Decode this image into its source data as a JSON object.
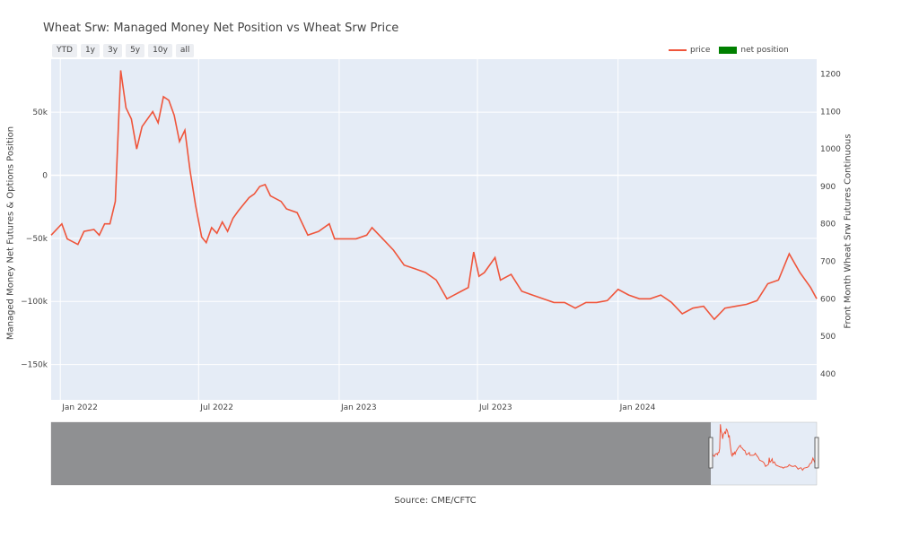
{
  "header": {
    "title": "Wheat Srw: Managed Money Net Position vs Wheat Srw Price"
  },
  "range_selector": [
    {
      "label": "YTD"
    },
    {
      "label": "1y"
    },
    {
      "label": "3y"
    },
    {
      "label": "5y"
    },
    {
      "label": "10y"
    },
    {
      "label": "all"
    }
  ],
  "legend": {
    "price_label": "price",
    "net_label": "net position"
  },
  "source": "Source: CME/CFTC",
  "colors": {
    "price": "#EF553B",
    "net": "#008000",
    "plot_bg": "#E5ECF6",
    "grid": "#ffffff",
    "rangeslider_mask": "#808080"
  },
  "chart_data": {
    "type": "line",
    "title": "Wheat Srw: Managed Money Net Position vs Wheat Srw Price",
    "xlabel": "",
    "ylabel": "Managed Money Net Futures & Options Position",
    "y2label": "Front Month Wheat Srw Futures Continuous",
    "x_ticks": [
      "Jan 2022",
      "Jul 2022",
      "Jan 2023",
      "Jul 2023",
      "Jan 2024"
    ],
    "y_ticks": [
      "50k",
      "0",
      "−50k",
      "−100k",
      "−150k"
    ],
    "y2_ticks": [
      "1200",
      "1100",
      "1000",
      "900",
      "800",
      "700",
      "600",
      "500",
      "400"
    ],
    "ylim": [
      -178000,
      92000
    ],
    "y2lim": [
      330,
      1240
    ],
    "xlim": [
      "2021-12-20",
      "2024-09-17"
    ],
    "y_tick_values": [
      50000,
      0,
      -50000,
      -100000,
      -150000
    ],
    "y2_tick_values": [
      1200,
      1100,
      1000,
      900,
      800,
      700,
      600,
      500,
      400
    ],
    "x_tick_dates": [
      "2022-01-01",
      "2022-07-01",
      "2023-01-01",
      "2023-07-01",
      "2024-01-01"
    ],
    "grid": true,
    "legend_position": "top-right",
    "series": [
      {
        "name": "price",
        "axis": "right",
        "x": [
          "2021-12-20",
          "2022-01-03",
          "2022-01-10",
          "2022-01-24",
          "2022-02-01",
          "2022-02-14",
          "2022-02-21",
          "2022-02-28",
          "2022-03-07",
          "2022-03-14",
          "2022-03-21",
          "2022-03-28",
          "2022-04-04",
          "2022-04-11",
          "2022-04-18",
          "2022-05-02",
          "2022-05-09",
          "2022-05-16",
          "2022-05-23",
          "2022-05-30",
          "2022-06-06",
          "2022-06-13",
          "2022-06-20",
          "2022-06-27",
          "2022-07-05",
          "2022-07-11",
          "2022-07-18",
          "2022-07-25",
          "2022-08-01",
          "2022-08-08",
          "2022-08-15",
          "2022-08-22",
          "2022-09-05",
          "2022-09-12",
          "2022-09-19",
          "2022-09-26",
          "2022-10-03",
          "2022-10-17",
          "2022-10-24",
          "2022-11-07",
          "2022-11-21",
          "2022-12-05",
          "2022-12-19",
          "2022-12-26",
          "2023-01-09",
          "2023-01-23",
          "2023-02-06",
          "2023-02-13",
          "2023-02-27",
          "2023-03-13",
          "2023-03-27",
          "2023-04-10",
          "2023-04-24",
          "2023-05-08",
          "2023-05-22",
          "2023-06-05",
          "2023-06-19",
          "2023-06-26",
          "2023-07-03",
          "2023-07-10",
          "2023-07-24",
          "2023-07-31",
          "2023-08-14",
          "2023-08-28",
          "2023-09-11",
          "2023-09-25",
          "2023-10-09",
          "2023-10-23",
          "2023-11-06",
          "2023-11-20",
          "2023-12-04",
          "2023-12-18",
          "2024-01-01",
          "2024-01-15",
          "2024-01-29",
          "2024-02-12",
          "2024-02-26",
          "2024-03-11",
          "2024-03-25",
          "2024-04-08",
          "2024-04-22",
          "2024-05-06",
          "2024-05-20",
          "2024-06-03",
          "2024-06-17",
          "2024-07-01",
          "2024-07-15",
          "2024-07-29",
          "2024-08-12",
          "2024-08-26",
          "2024-09-09",
          "2024-09-17"
        ],
        "values": [
          770,
          800,
          760,
          745,
          780,
          785,
          770,
          800,
          800,
          860,
          1210,
          1110,
          1080,
          1000,
          1060,
          1100,
          1070,
          1140,
          1130,
          1090,
          1020,
          1050,
          940,
          850,
          765,
          750,
          790,
          775,
          805,
          780,
          815,
          835,
          870,
          880,
          900,
          905,
          875,
          860,
          840,
          830,
          770,
          780,
          800,
          760,
          760,
          760,
          770,
          790,
          760,
          730,
          690,
          680,
          670,
          650,
          600,
          615,
          630,
          725,
          660,
          670,
          710,
          650,
          665,
          620,
          610,
          600,
          590,
          590,
          575,
          590,
          590,
          595,
          625,
          610,
          600,
          600,
          610,
          590,
          560,
          575,
          580,
          545,
          575,
          580,
          585,
          595,
          640,
          650,
          720,
          670,
          630,
          600
        ],
        "_note": "price series also includes additional weekly points"
      }
    ]
  }
}
